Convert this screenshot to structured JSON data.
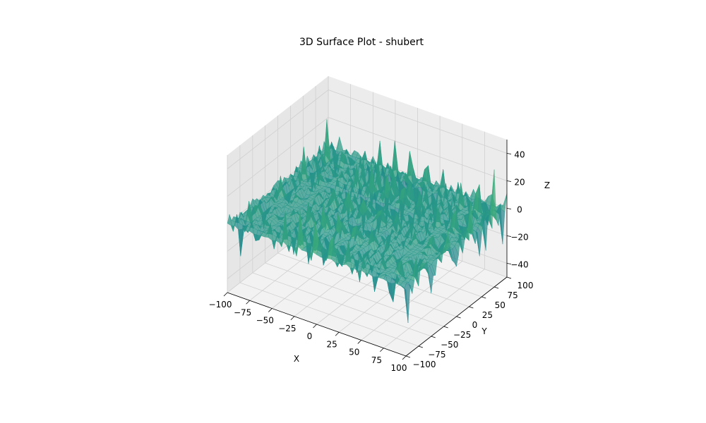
{
  "chart_data": {
    "type": "surface3d",
    "title": "3D Surface Plot - shubert",
    "xlabel": "X",
    "ylabel": "Y",
    "zlabel": "Z",
    "xlim": [
      -100,
      100
    ],
    "ylim": [
      -100,
      100
    ],
    "zlim": [
      -50,
      50
    ],
    "x_ticks": [
      -100,
      -75,
      -50,
      -25,
      0,
      25,
      50,
      75,
      100
    ],
    "y_ticks": [
      -100,
      -75,
      -50,
      -25,
      0,
      25,
      50,
      75,
      100
    ],
    "z_ticks": [
      -40,
      -20,
      0,
      20,
      40
    ],
    "grid": true,
    "colormap": "viridis",
    "colormap_colors": [
      "#440154",
      "#3b528b",
      "#21918c",
      "#5ec962",
      "#fde725"
    ],
    "surface_function": "shubert",
    "surface_z_range_approx": [
      -45,
      45
    ]
  }
}
